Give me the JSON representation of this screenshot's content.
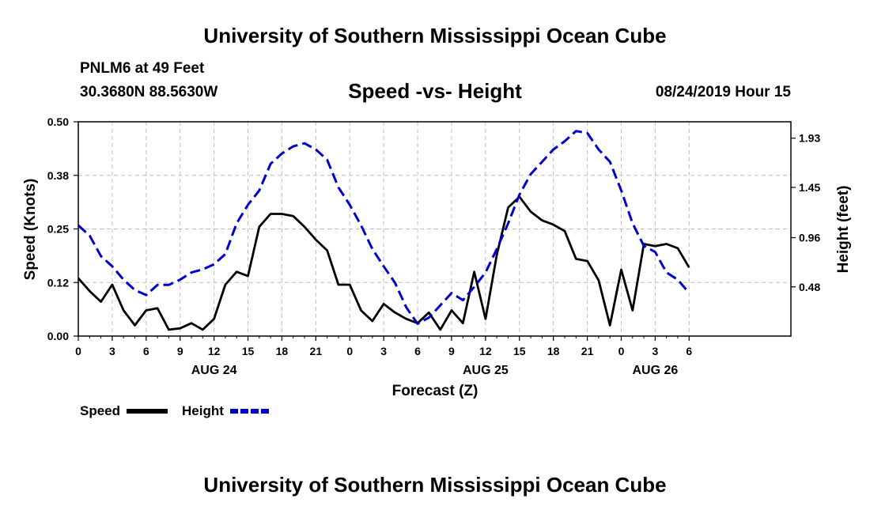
{
  "header": {
    "top_title": "University of Southern Mississippi Ocean Cube",
    "station": "PNLM6 at 49 Feet",
    "coords": "30.3680N 88.5630W",
    "datetime": "08/24/2019 Hour 15",
    "bottom_title": "University of Southern Mississippi Ocean Cube"
  },
  "chart_data": {
    "type": "line",
    "title": "Speed -vs- Height",
    "xlabel": "Forecast (Z)",
    "ylabel_left": "Speed (Knots)",
    "ylabel_right": "Height (feet)",
    "x_range": [
      0,
      63
    ],
    "x_ticks": [
      {
        "pos": 0,
        "label": "0"
      },
      {
        "pos": 3,
        "label": "3"
      },
      {
        "pos": 6,
        "label": "6"
      },
      {
        "pos": 9,
        "label": "9"
      },
      {
        "pos": 12,
        "label": "12"
      },
      {
        "pos": 15,
        "label": "15"
      },
      {
        "pos": 18,
        "label": "18"
      },
      {
        "pos": 21,
        "label": "21"
      },
      {
        "pos": 24,
        "label": "0"
      },
      {
        "pos": 27,
        "label": "3"
      },
      {
        "pos": 30,
        "label": "6"
      },
      {
        "pos": 33,
        "label": "9"
      },
      {
        "pos": 36,
        "label": "12"
      },
      {
        "pos": 39,
        "label": "15"
      },
      {
        "pos": 42,
        "label": "18"
      },
      {
        "pos": 45,
        "label": "21"
      },
      {
        "pos": 48,
        "label": "0"
      },
      {
        "pos": 51,
        "label": "3"
      },
      {
        "pos": 54,
        "label": "6"
      }
    ],
    "date_labels": [
      {
        "pos": 12,
        "label": "AUG 24"
      },
      {
        "pos": 36,
        "label": "AUG 25"
      },
      {
        "pos": 51,
        "label": "AUG 26"
      }
    ],
    "y_left": {
      "range": [
        0,
        0.5
      ],
      "ticks": [
        "0.00",
        "0.12",
        "0.25",
        "0.38",
        "0.50"
      ],
      "tick_values": [
        0,
        0.125,
        0.25,
        0.375,
        0.5
      ]
    },
    "y_right": {
      "range": [
        0,
        2.09
      ],
      "ticks": [
        "0.48",
        "0.96",
        "1.45",
        "1.93"
      ],
      "tick_values": [
        0.48,
        0.96,
        1.45,
        1.93
      ]
    },
    "legend": [
      {
        "name": "Speed",
        "color": "#000000",
        "style": "solid"
      },
      {
        "name": "Height",
        "color": "#0000cc",
        "style": "dashed"
      }
    ],
    "series": [
      {
        "name": "Speed",
        "axis": "left",
        "color": "#000000",
        "x": [
          0,
          1,
          2,
          3,
          4,
          5,
          6,
          7,
          8,
          9,
          10,
          11,
          12,
          13,
          14,
          15,
          16,
          17,
          18,
          19,
          20,
          21,
          22,
          23,
          24,
          25,
          26,
          27,
          28,
          29,
          30,
          31,
          32,
          33,
          34,
          35,
          36,
          37,
          38,
          39,
          40,
          41,
          42,
          43,
          44,
          45,
          46,
          47,
          48,
          49,
          50,
          51,
          52,
          53,
          54
        ],
        "values": [
          0.135,
          0.105,
          0.08,
          0.12,
          0.06,
          0.025,
          0.06,
          0.065,
          0.015,
          0.018,
          0.03,
          0.015,
          0.04,
          0.12,
          0.15,
          0.14,
          0.255,
          0.285,
          0.285,
          0.28,
          0.255,
          0.225,
          0.2,
          0.12,
          0.12,
          0.06,
          0.035,
          0.075,
          0.055,
          0.04,
          0.03,
          0.055,
          0.015,
          0.06,
          0.03,
          0.15,
          0.04,
          0.19,
          0.3,
          0.325,
          0.29,
          0.27,
          0.26,
          0.245,
          0.18,
          0.175,
          0.13,
          0.025,
          0.155,
          0.06,
          0.215,
          0.21,
          0.215,
          0.205,
          0.16
        ]
      },
      {
        "name": "Height",
        "axis": "right",
        "color": "#0000cc",
        "x": [
          0,
          1,
          2,
          3,
          4,
          5,
          6,
          7,
          8,
          9,
          10,
          11,
          12,
          13,
          14,
          15,
          16,
          17,
          18,
          19,
          20,
          21,
          22,
          23,
          24,
          25,
          26,
          27,
          28,
          29,
          30,
          31,
          32,
          33,
          34,
          35,
          36,
          37,
          38,
          39,
          40,
          41,
          42,
          43,
          44,
          45,
          46,
          47,
          48,
          49,
          50,
          51,
          52,
          53,
          54
        ],
        "values": [
          1.08,
          0.98,
          0.78,
          0.68,
          0.55,
          0.45,
          0.4,
          0.5,
          0.5,
          0.55,
          0.62,
          0.65,
          0.7,
          0.8,
          1.1,
          1.28,
          1.42,
          1.68,
          1.78,
          1.85,
          1.88,
          1.82,
          1.72,
          1.45,
          1.28,
          1.08,
          0.85,
          0.68,
          0.52,
          0.28,
          0.12,
          0.18,
          0.3,
          0.42,
          0.35,
          0.48,
          0.62,
          0.85,
          1.1,
          1.38,
          1.58,
          1.7,
          1.82,
          1.9,
          2.0,
          1.98,
          1.82,
          1.7,
          1.42,
          1.1,
          0.88,
          0.82,
          0.62,
          0.55,
          0.42
        ]
      }
    ]
  }
}
